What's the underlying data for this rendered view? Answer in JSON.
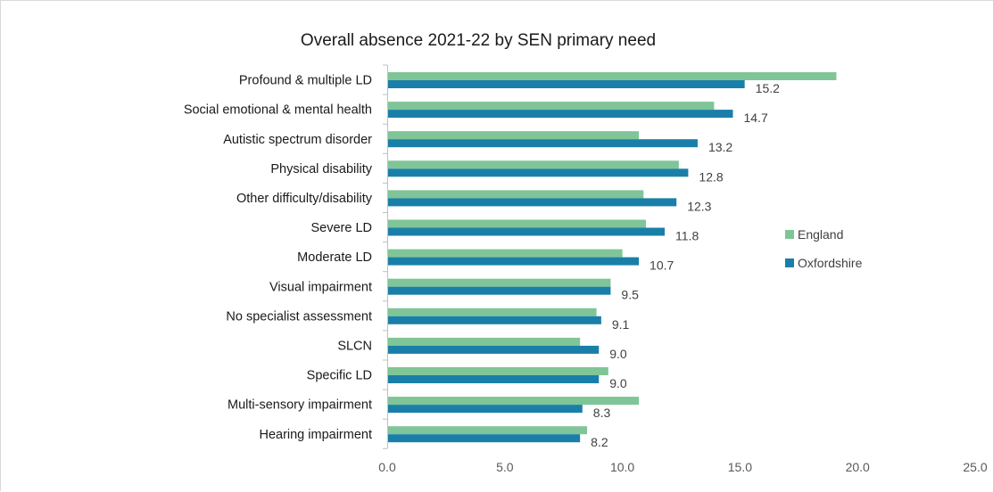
{
  "chart_data": {
    "type": "bar",
    "orientation": "horizontal",
    "title": "Overall absence 2021-22 by SEN primary need",
    "xlabel": "",
    "ylabel": "",
    "xlim": [
      0,
      25
    ],
    "x_ticks": [
      "0.0",
      "5.0",
      "10.0",
      "15.0",
      "20.0",
      "25.0"
    ],
    "grid": false,
    "legend_position": "right",
    "categories": [
      "Profound & multiple LD",
      "Social emotional & mental health",
      "Autistic spectrum disorder",
      "Physical disability",
      "Other difficulty/disability",
      "Severe LD",
      "Moderate LD",
      "Visual impairment",
      "No specialist assessment",
      "SLCN",
      "Specific LD",
      "Multi-sensory impairment",
      "Hearing impairment"
    ],
    "series": [
      {
        "name": "England",
        "color": "#7fc597",
        "values": [
          19.1,
          13.9,
          10.7,
          12.4,
          10.9,
          11.0,
          10.0,
          9.5,
          8.9,
          8.2,
          9.4,
          10.7,
          8.5
        ]
      },
      {
        "name": "Oxfordshire",
        "color": "#1a7fa8",
        "values": [
          15.2,
          14.7,
          13.2,
          12.8,
          12.3,
          11.8,
          10.7,
          9.5,
          9.1,
          9.0,
          9.0,
          8.3,
          8.2
        ],
        "data_labels": [
          "15.2",
          "14.7",
          "13.2",
          "12.8",
          "12.3",
          "11.8",
          "10.7",
          "9.5",
          "9.1",
          "9.0",
          "9.0",
          "8.3",
          "8.2"
        ]
      }
    ]
  }
}
